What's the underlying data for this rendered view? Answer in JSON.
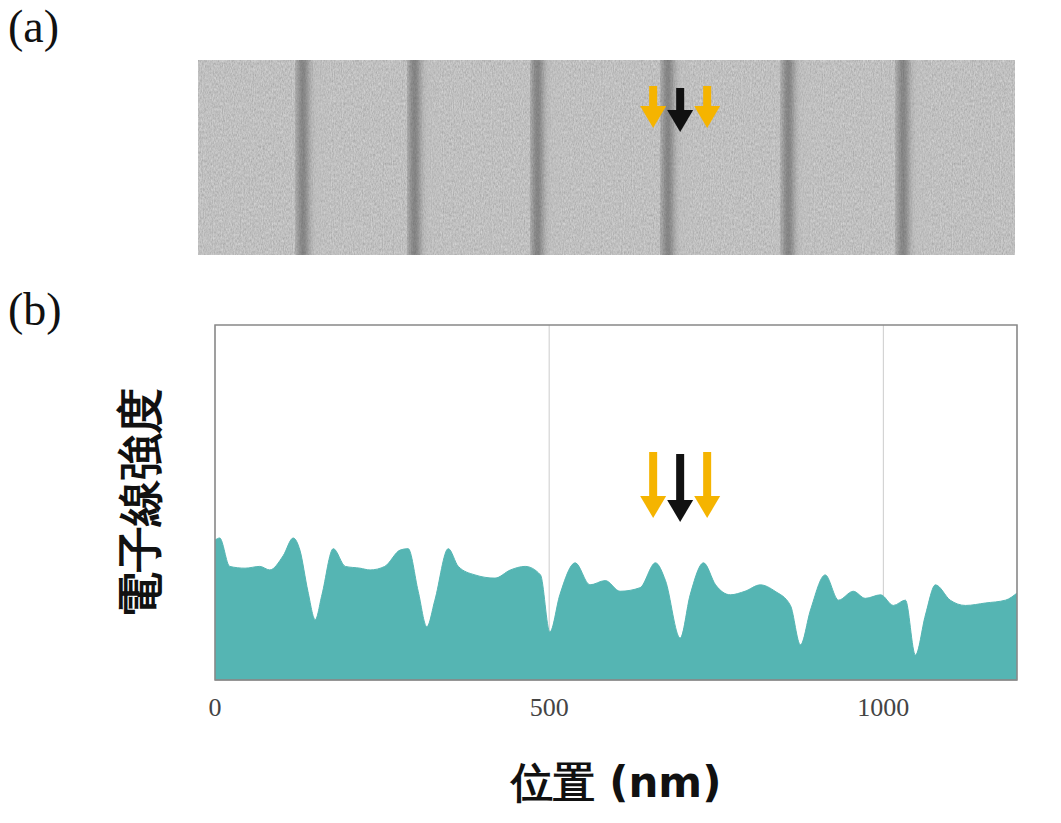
{
  "panel_labels": [
    "(a)",
    "(b)"
  ],
  "chart_data": {
    "type": "area",
    "x_label": "位置 (nm)",
    "y_label": "電子線強度",
    "x": [
      0,
      7,
      22,
      45,
      67,
      82,
      102,
      117,
      127,
      139,
      150,
      160,
      177,
      195,
      217,
      232,
      254,
      277,
      289,
      304,
      317,
      329,
      349,
      364,
      389,
      419,
      442,
      464,
      487,
      501,
      516,
      539,
      561,
      584,
      606,
      636,
      659,
      674,
      696,
      711,
      731,
      749,
      771,
      793,
      816,
      838,
      861,
      876,
      891,
      913,
      933,
      955,
      973,
      996,
      1015,
      1033,
      1048,
      1063,
      1078,
      1100,
      1123,
      1153,
      1183,
      1200
    ],
    "values": [
      39.4,
      40,
      32,
      31.5,
      32,
      31,
      35,
      40,
      36.6,
      25,
      17,
      24,
      37,
      32,
      31.5,
      31,
      32,
      36.6,
      37,
      25,
      15,
      22.5,
      37,
      32,
      29.6,
      28.7,
      31,
      32,
      29.6,
      13.5,
      24,
      33,
      26.8,
      28,
      25,
      26,
      33,
      28,
      11.8,
      24,
      33,
      26.8,
      24,
      25,
      26.8,
      25,
      21,
      9.9,
      19.7,
      29.6,
      22.5,
      25,
      23,
      24,
      21,
      22.5,
      7,
      18.3,
      26.8,
      22.5,
      21,
      21.7,
      22.5,
      24.5
    ],
    "color": "#55b5b3",
    "xlim": [
      0,
      1200
    ],
    "xticks": [
      0,
      500,
      1000
    ],
    "ylim": [
      0,
      100
    ],
    "grid": true,
    "tick_labels": "x"
  }
}
